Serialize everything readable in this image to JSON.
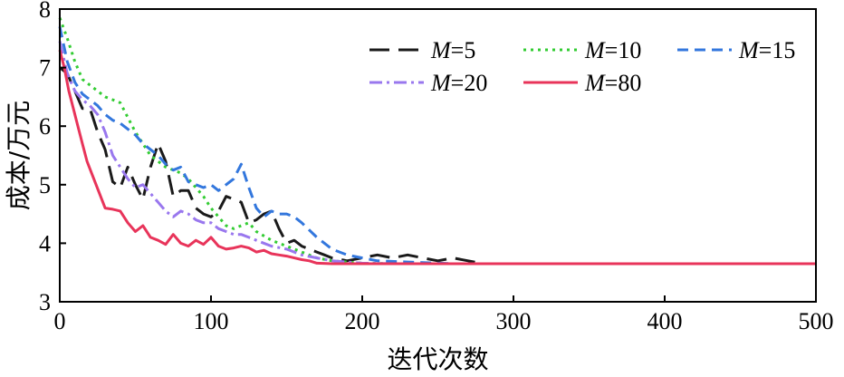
{
  "chart_data": {
    "type": "line",
    "xlabel": "迭代次数",
    "ylabel": "成本/万元",
    "xlim": [
      0,
      500
    ],
    "ylim": [
      3,
      8
    ],
    "xticks": [
      0,
      100,
      200,
      300,
      400,
      500
    ],
    "yticks": [
      3,
      4,
      5,
      6,
      7,
      8
    ],
    "grid": false,
    "legend_position": "top-right",
    "series": [
      {
        "label_prefix": "M",
        "label_suffix": "=5",
        "color": "#1a1a1a",
        "dash": "22,10",
        "x": [
          0,
          5,
          10,
          15,
          20,
          25,
          30,
          35,
          40,
          45,
          50,
          55,
          60,
          65,
          70,
          75,
          80,
          85,
          90,
          95,
          100,
          105,
          110,
          115,
          120,
          125,
          130,
          135,
          140,
          145,
          150,
          155,
          160,
          165,
          170,
          175,
          180,
          190,
          200,
          210,
          220,
          230,
          240,
          250,
          260,
          270,
          280,
          300,
          500
        ],
        "y": [
          7.0,
          6.9,
          6.6,
          6.3,
          6.3,
          5.9,
          5.6,
          5.05,
          4.95,
          5.3,
          5.0,
          4.75,
          5.3,
          5.7,
          5.4,
          4.8,
          4.9,
          4.9,
          4.6,
          4.5,
          4.45,
          4.55,
          4.8,
          4.75,
          4.7,
          4.35,
          4.4,
          4.5,
          4.55,
          4.25,
          4.0,
          4.05,
          3.95,
          3.9,
          3.85,
          3.8,
          3.75,
          3.7,
          3.75,
          3.8,
          3.75,
          3.8,
          3.75,
          3.7,
          3.75,
          3.7,
          3.65,
          3.65,
          3.65
        ]
      },
      {
        "label_prefix": "M",
        "label_suffix": "=10",
        "color": "#33cc33",
        "dash": "3,5",
        "x": [
          0,
          5,
          10,
          15,
          20,
          25,
          30,
          35,
          40,
          45,
          50,
          55,
          60,
          65,
          70,
          75,
          80,
          85,
          90,
          95,
          100,
          105,
          110,
          115,
          120,
          125,
          130,
          140,
          150,
          160,
          170,
          180,
          190,
          200,
          220,
          250,
          300,
          500
        ],
        "y": [
          7.85,
          7.5,
          7.1,
          6.8,
          6.7,
          6.6,
          6.5,
          6.45,
          6.4,
          6.15,
          5.9,
          5.7,
          5.5,
          5.4,
          5.3,
          5.25,
          5.2,
          5.1,
          4.95,
          4.8,
          4.6,
          4.45,
          4.3,
          4.25,
          4.3,
          4.35,
          4.2,
          4.05,
          3.95,
          3.85,
          3.75,
          3.7,
          3.68,
          3.66,
          3.65,
          3.65,
          3.65,
          3.65
        ]
      },
      {
        "label_prefix": "M",
        "label_suffix": "=15",
        "color": "#3377dd",
        "dash": "12,7",
        "x": [
          0,
          5,
          10,
          15,
          20,
          25,
          30,
          35,
          40,
          45,
          50,
          55,
          60,
          65,
          70,
          75,
          80,
          85,
          90,
          95,
          100,
          105,
          110,
          115,
          120,
          125,
          130,
          135,
          140,
          145,
          150,
          155,
          160,
          170,
          180,
          190,
          200,
          210,
          230,
          260,
          300,
          500
        ],
        "y": [
          7.7,
          7.1,
          6.75,
          6.55,
          6.45,
          6.35,
          6.2,
          6.1,
          6.05,
          5.95,
          5.85,
          5.7,
          5.6,
          5.5,
          5.35,
          5.25,
          5.3,
          5.05,
          5.0,
          4.95,
          5.0,
          4.9,
          5.0,
          5.1,
          5.35,
          4.95,
          4.6,
          4.45,
          4.55,
          4.5,
          4.5,
          4.45,
          4.35,
          4.1,
          3.9,
          3.8,
          3.75,
          3.7,
          3.68,
          3.65,
          3.65,
          3.65
        ]
      },
      {
        "label_prefix": "M",
        "label_suffix": "=20",
        "color": "#9977ee",
        "dash": "14,5,3,5",
        "x": [
          0,
          5,
          10,
          15,
          20,
          25,
          30,
          35,
          40,
          45,
          50,
          55,
          60,
          65,
          70,
          75,
          80,
          85,
          90,
          95,
          100,
          105,
          110,
          115,
          120,
          125,
          130,
          140,
          150,
          160,
          170,
          180,
          190,
          200,
          220,
          250,
          300,
          500
        ],
        "y": [
          7.45,
          6.9,
          6.6,
          6.45,
          6.35,
          6.2,
          5.9,
          5.5,
          5.3,
          5.1,
          4.95,
          5.0,
          4.85,
          4.7,
          4.55,
          4.45,
          4.55,
          4.5,
          4.4,
          4.35,
          4.35,
          4.25,
          4.2,
          4.15,
          4.15,
          4.1,
          4.05,
          3.95,
          3.9,
          3.8,
          3.75,
          3.7,
          3.68,
          3.66,
          3.65,
          3.65,
          3.65,
          3.65
        ]
      },
      {
        "label_prefix": "M",
        "label_suffix": "=80",
        "color": "#e8345a",
        "dash": "",
        "x": [
          0,
          3,
          6,
          9,
          12,
          15,
          18,
          21,
          24,
          27,
          30,
          35,
          40,
          45,
          50,
          55,
          60,
          65,
          70,
          75,
          80,
          85,
          90,
          95,
          100,
          105,
          110,
          115,
          120,
          125,
          130,
          135,
          140,
          145,
          150,
          155,
          160,
          165,
          170,
          180,
          190,
          200,
          250,
          300,
          500
        ],
        "y": [
          7.3,
          7.0,
          6.6,
          6.3,
          6.0,
          5.7,
          5.4,
          5.2,
          5.0,
          4.8,
          4.6,
          4.58,
          4.55,
          4.35,
          4.2,
          4.3,
          4.1,
          4.05,
          3.98,
          4.15,
          4.0,
          3.95,
          4.05,
          3.98,
          4.1,
          3.95,
          3.9,
          3.92,
          3.95,
          3.92,
          3.85,
          3.88,
          3.82,
          3.8,
          3.78,
          3.75,
          3.72,
          3.7,
          3.66,
          3.65,
          3.65,
          3.65,
          3.65,
          3.65,
          3.65
        ]
      }
    ]
  }
}
